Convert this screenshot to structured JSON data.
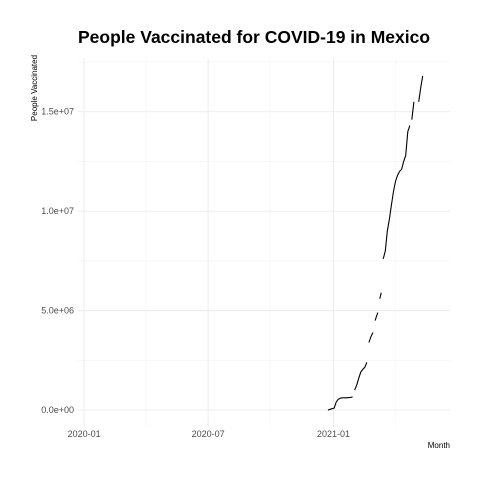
{
  "chart_data": {
    "type": "line",
    "title": "People Vaccinated for COVID-19 in Mexico",
    "xlabel": "Month",
    "ylabel": "People Vaccinated",
    "x_ticks": [
      "2020-01",
      "2020-07",
      "2021-01"
    ],
    "y_ticks": [
      "0.0e+00",
      "5.0e+06",
      "1.0e+07",
      "1.5e+07"
    ],
    "y_tick_values": [
      0,
      5000000,
      10000000,
      15000000
    ],
    "xlim": [
      "2019-12-23",
      "2021-06-21"
    ],
    "ylim": [
      -850000,
      17700000
    ],
    "grid": true,
    "legend": "none",
    "series": [
      {
        "x": [
          "2020-12-24",
          "2020-12-27",
          "2020-12-30",
          "2021-01-02",
          "2021-01-05",
          "2021-01-08",
          "2021-01-11",
          "2021-01-14",
          "2021-01-17",
          "2021-01-20",
          "2021-01-23",
          "2021-01-26",
          "2021-01-29",
          null,
          "2021-02-01",
          "2021-02-04",
          "2021-02-07",
          "2021-02-10",
          "2021-02-13",
          "2021-02-16",
          "2021-02-19",
          null,
          "2021-02-22",
          "2021-02-25",
          "2021-02-28",
          null,
          "2021-03-03",
          "2021-03-05",
          "2021-03-07",
          null,
          "2021-03-10",
          "2021-03-12",
          null,
          "2021-03-15",
          "2021-03-18",
          "2021-03-21",
          "2021-03-24",
          "2021-03-27",
          "2021-03-30",
          "2021-04-02",
          "2021-04-05",
          "2021-04-08",
          "2021-04-11",
          "2021-04-14",
          "2021-04-17",
          "2021-04-20",
          "2021-04-23",
          null,
          "2021-04-26",
          "2021-04-29",
          null,
          "2021-05-06",
          "2021-05-09",
          "2021-05-12"
        ],
        "y": [
          0,
          40000,
          70000,
          100000,
          400000,
          550000,
          600000,
          620000,
          620000,
          620000,
          630000,
          640000,
          660000,
          null,
          1000000,
          1250000,
          1600000,
          1900000,
          2050000,
          2150000,
          2400000,
          null,
          3400000,
          3700000,
          3900000,
          null,
          4500000,
          4700000,
          4900000,
          null,
          5600000,
          5900000,
          null,
          7600000,
          8000000,
          9000000,
          9600000,
          10300000,
          11000000,
          11500000,
          11800000,
          12000000,
          12100000,
          12500000,
          12800000,
          14000000,
          14300000,
          null,
          14600000,
          15500000,
          null,
          15500000,
          16200000,
          16800000
        ]
      }
    ]
  }
}
